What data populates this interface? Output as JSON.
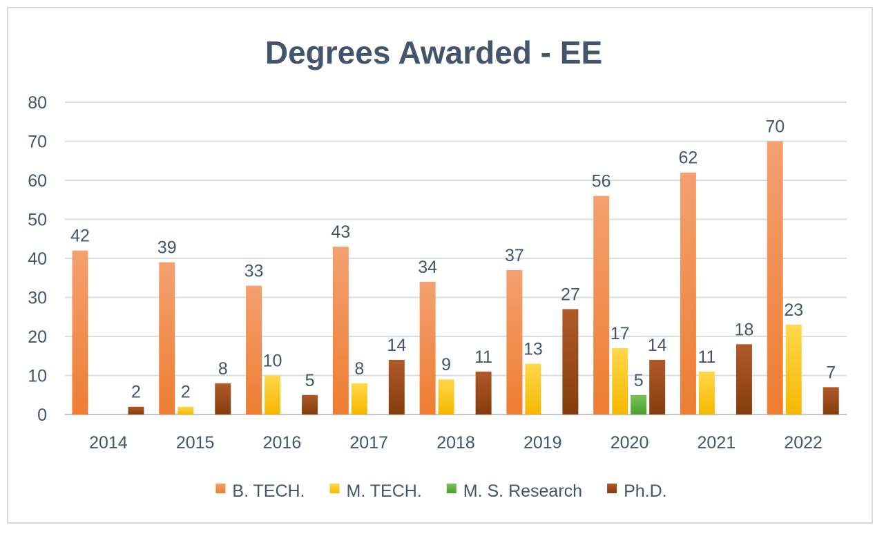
{
  "chart_data": {
    "type": "bar",
    "title": "Degrees Awarded - EE",
    "xlabel": "",
    "ylabel": "",
    "ylim": [
      0,
      80
    ],
    "yticks": [
      0,
      10,
      20,
      30,
      40,
      50,
      60,
      70,
      80
    ],
    "grid": true,
    "legend_position": "bottom",
    "categories": [
      "2014",
      "2015",
      "2016",
      "2017",
      "2018",
      "2019",
      "2020",
      "2021",
      "2022"
    ],
    "series": [
      {
        "name": "B. TECH.",
        "color": "#ed7d31",
        "colorLight": "#f4a070",
        "values": [
          42,
          39,
          33,
          43,
          34,
          37,
          56,
          62,
          70
        ]
      },
      {
        "name": "M. TECH.",
        "color": "#f5b800",
        "colorLight": "#ffd84a",
        "values": [
          null,
          2,
          10,
          8,
          9,
          13,
          17,
          11,
          23
        ]
      },
      {
        "name": "M. S. Research",
        "color": "#4aa02c",
        "colorLight": "#7cc25a",
        "values": [
          null,
          null,
          null,
          null,
          null,
          null,
          5,
          null,
          null
        ]
      },
      {
        "name": "Ph.D.",
        "color": "#843c0c",
        "colorLight": "#b05a2a",
        "values": [
          2,
          8,
          5,
          14,
          11,
          27,
          14,
          18,
          7
        ]
      }
    ]
  }
}
